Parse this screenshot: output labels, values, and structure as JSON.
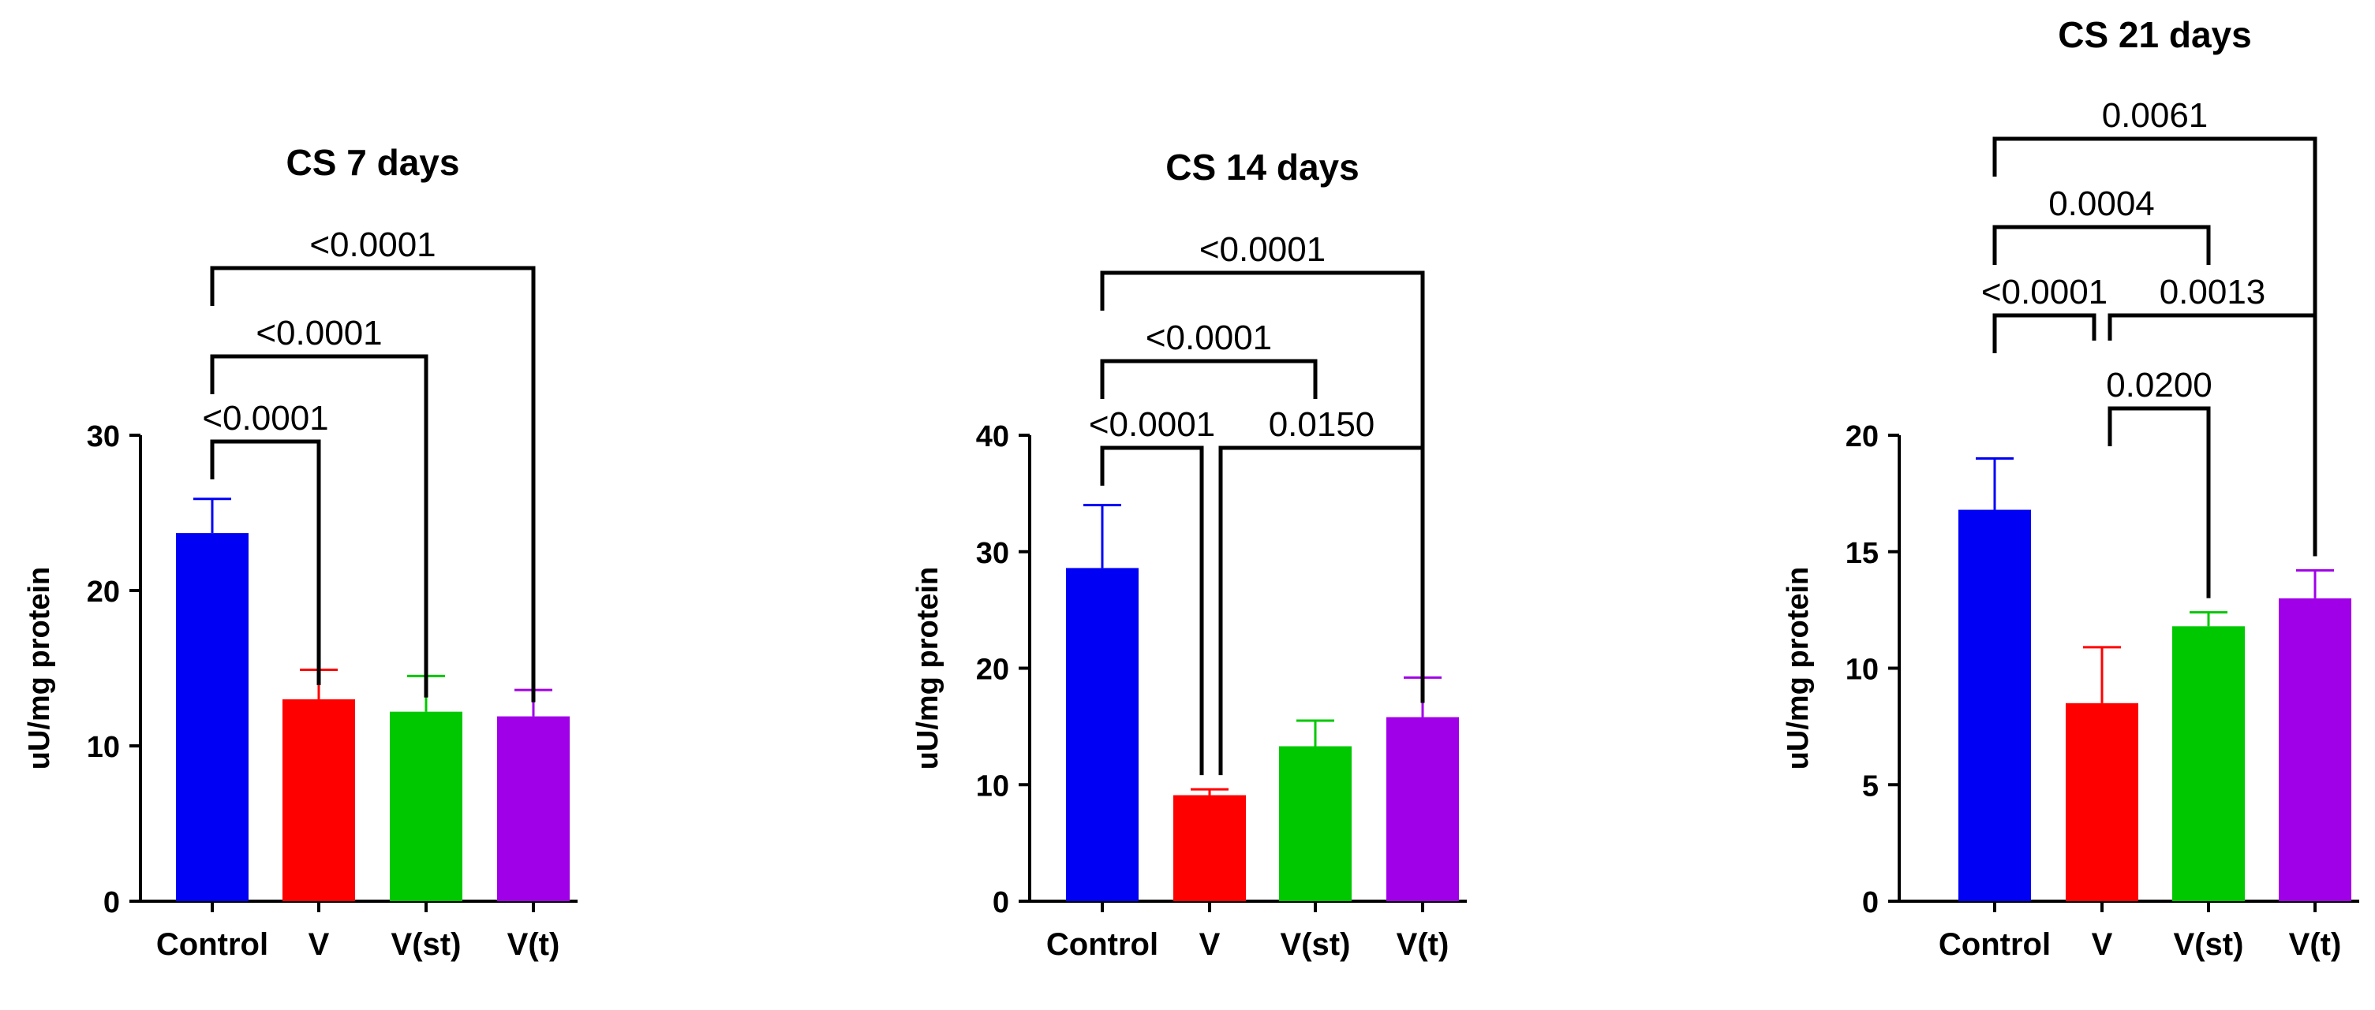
{
  "chart_data": [
    {
      "type": "bar",
      "title": "CS 7 days",
      "ylabel": "uU/mg protein",
      "xlabel": "",
      "categories": [
        "Control",
        "V",
        "V(st)",
        "V(t)"
      ],
      "values": [
        23.7,
        13.0,
        12.2,
        11.9
      ],
      "error": [
        2.2,
        1.9,
        2.3,
        1.7
      ],
      "colors": [
        "#0000f5",
        "#ff0000",
        "#00c800",
        "#a000e8"
      ],
      "ylim": [
        0,
        30
      ],
      "yticks": [
        0,
        10,
        20,
        30
      ],
      "ytick_labels": [
        "0",
        "10",
        "20",
        "30"
      ],
      "grid": false,
      "comparisons": [
        {
          "from": "Control",
          "to": "V",
          "label": "<0.0001"
        },
        {
          "from": "Control",
          "to": "V(st)",
          "label": "<0.0001"
        },
        {
          "from": "Control",
          "to": "V(t)",
          "label": "<0.0001"
        }
      ]
    },
    {
      "type": "bar",
      "title": "CS 14 days",
      "ylabel": "uU/mg protein",
      "xlabel": "",
      "categories": [
        "Control",
        "V",
        "V(st)",
        "V(t)"
      ],
      "values": [
        28.6,
        9.1,
        13.3,
        15.8
      ],
      "error": [
        5.4,
        0.5,
        2.2,
        3.4
      ],
      "colors": [
        "#0000f5",
        "#ff0000",
        "#00c800",
        "#a000e8"
      ],
      "ylim": [
        0,
        40
      ],
      "yticks": [
        0,
        10,
        20,
        30,
        40
      ],
      "ytick_labels": [
        "0",
        "10",
        "20",
        "30",
        "40"
      ],
      "grid": false,
      "comparisons": [
        {
          "from": "Control",
          "to": "V",
          "label": "<0.0001"
        },
        {
          "from": "V",
          "to": "V(t)",
          "label": "0.0150"
        },
        {
          "from": "Control",
          "to": "V(st)",
          "label": "<0.0001"
        },
        {
          "from": "Control",
          "to": "V(t)",
          "label": "<0.0001"
        }
      ]
    },
    {
      "type": "bar",
      "title": "CS 21 days",
      "ylabel": "uU/mg protein",
      "xlabel": "",
      "categories": [
        "Control",
        "V",
        "V(st)",
        "V(t)"
      ],
      "values": [
        16.8,
        8.5,
        11.8,
        13.0
      ],
      "error": [
        2.2,
        2.4,
        0.6,
        1.2
      ],
      "colors": [
        "#0000f5",
        "#ff0000",
        "#00c800",
        "#a000e8"
      ],
      "ylim": [
        0,
        20
      ],
      "yticks": [
        0,
        5,
        10,
        15,
        20
      ],
      "ytick_labels": [
        "0",
        "5",
        "10",
        "15",
        "20"
      ],
      "grid": false,
      "comparisons": [
        {
          "from": "V",
          "to": "V(st)",
          "label": "0.0200"
        },
        {
          "from": "Control",
          "to": "V",
          "label": "<0.0001"
        },
        {
          "from": "V",
          "to": "V(t)",
          "label": "0.0013"
        },
        {
          "from": "Control",
          "to": "V(st)",
          "label": "0.0004"
        },
        {
          "from": "Control",
          "to": "V(t)",
          "label": "0.0061"
        }
      ]
    }
  ]
}
